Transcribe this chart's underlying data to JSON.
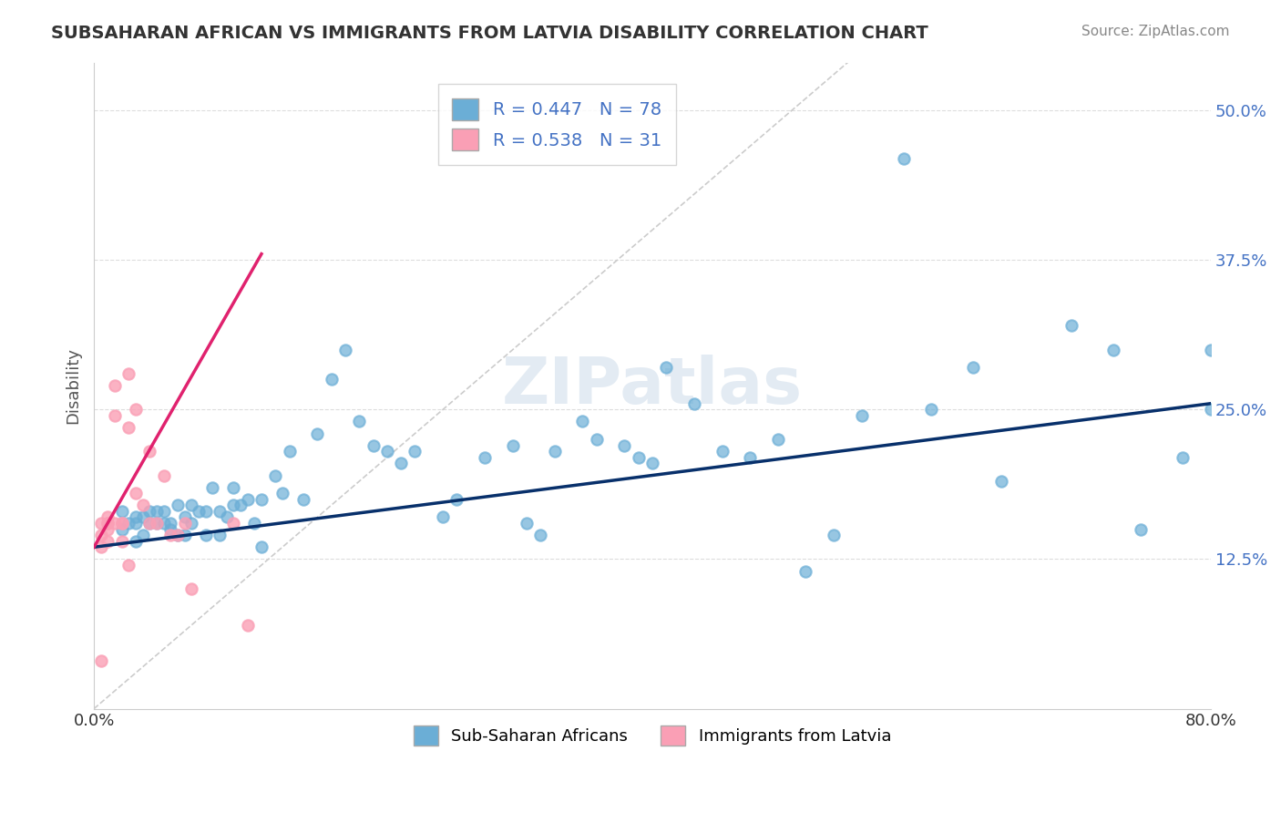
{
  "title": "SUBSAHARAN AFRICAN VS IMMIGRANTS FROM LATVIA DISABILITY CORRELATION CHART",
  "source": "Source: ZipAtlas.com",
  "xlabel": "",
  "ylabel": "Disability",
  "xlim": [
    0.0,
    0.8
  ],
  "ylim": [
    0.0,
    0.54
  ],
  "xticks": [
    0.0,
    0.1,
    0.2,
    0.3,
    0.4,
    0.5,
    0.6,
    0.7,
    0.8
  ],
  "xticklabels": [
    "0.0%",
    "",
    "",
    "",
    "",
    "",
    "",
    "",
    "80.0%"
  ],
  "ytick_positions": [
    0.125,
    0.25,
    0.375,
    0.5
  ],
  "ytick_labels": [
    "12.5%",
    "25.0%",
    "37.5%",
    "50.0%"
  ],
  "legend_r1": "R = 0.447",
  "legend_n1": "N = 78",
  "legend_r2": "R = 0.538",
  "legend_n2": "N = 31",
  "blue_color": "#6baed6",
  "blue_line_color": "#08306b",
  "pink_color": "#fa9fb5",
  "pink_line_color": "#e0226e",
  "ref_line_color": "#cccccc",
  "background_color": "#ffffff",
  "watermark": "ZIPatlas",
  "blue_scatter_x": [
    0.02,
    0.02,
    0.025,
    0.03,
    0.03,
    0.03,
    0.035,
    0.035,
    0.04,
    0.04,
    0.045,
    0.045,
    0.05,
    0.05,
    0.055,
    0.055,
    0.06,
    0.06,
    0.065,
    0.065,
    0.07,
    0.07,
    0.075,
    0.08,
    0.08,
    0.085,
    0.09,
    0.09,
    0.095,
    0.1,
    0.1,
    0.105,
    0.11,
    0.115,
    0.12,
    0.12,
    0.13,
    0.135,
    0.14,
    0.15,
    0.16,
    0.17,
    0.18,
    0.19,
    0.2,
    0.21,
    0.22,
    0.23,
    0.25,
    0.26,
    0.28,
    0.3,
    0.31,
    0.32,
    0.33,
    0.35,
    0.36,
    0.38,
    0.39,
    0.4,
    0.41,
    0.43,
    0.45,
    0.47,
    0.49,
    0.51,
    0.53,
    0.55,
    0.58,
    0.6,
    0.63,
    0.65,
    0.7,
    0.73,
    0.75,
    0.78,
    0.8,
    0.8
  ],
  "blue_scatter_y": [
    0.165,
    0.15,
    0.155,
    0.155,
    0.16,
    0.14,
    0.145,
    0.16,
    0.155,
    0.165,
    0.165,
    0.155,
    0.165,
    0.155,
    0.155,
    0.15,
    0.145,
    0.17,
    0.145,
    0.16,
    0.17,
    0.155,
    0.165,
    0.165,
    0.145,
    0.185,
    0.165,
    0.145,
    0.16,
    0.185,
    0.17,
    0.17,
    0.175,
    0.155,
    0.175,
    0.135,
    0.195,
    0.18,
    0.215,
    0.175,
    0.23,
    0.275,
    0.3,
    0.24,
    0.22,
    0.215,
    0.205,
    0.215,
    0.16,
    0.175,
    0.21,
    0.22,
    0.155,
    0.145,
    0.215,
    0.24,
    0.225,
    0.22,
    0.21,
    0.205,
    0.285,
    0.255,
    0.215,
    0.21,
    0.225,
    0.115,
    0.145,
    0.245,
    0.46,
    0.25,
    0.285,
    0.19,
    0.32,
    0.3,
    0.15,
    0.21,
    0.3,
    0.25
  ],
  "pink_scatter_x": [
    0.005,
    0.005,
    0.005,
    0.005,
    0.01,
    0.01,
    0.01,
    0.01,
    0.01,
    0.015,
    0.015,
    0.015,
    0.02,
    0.02,
    0.02,
    0.025,
    0.025,
    0.025,
    0.03,
    0.03,
    0.035,
    0.04,
    0.04,
    0.045,
    0.05,
    0.055,
    0.06,
    0.065,
    0.07,
    0.1,
    0.11
  ],
  "pink_scatter_y": [
    0.155,
    0.145,
    0.135,
    0.04,
    0.155,
    0.155,
    0.15,
    0.14,
    0.16,
    0.155,
    0.245,
    0.27,
    0.155,
    0.14,
    0.155,
    0.12,
    0.235,
    0.28,
    0.18,
    0.25,
    0.17,
    0.215,
    0.155,
    0.155,
    0.195,
    0.145,
    0.145,
    0.155,
    0.1,
    0.155,
    0.07
  ],
  "blue_trend_x": [
    0.0,
    0.8
  ],
  "blue_trend_y": [
    0.135,
    0.255
  ],
  "pink_trend_x": [
    0.0,
    0.12
  ],
  "pink_trend_y": [
    0.135,
    0.38
  ],
  "ref_line_x": [
    0.0,
    0.54
  ],
  "ref_line_y": [
    0.0,
    0.54
  ]
}
